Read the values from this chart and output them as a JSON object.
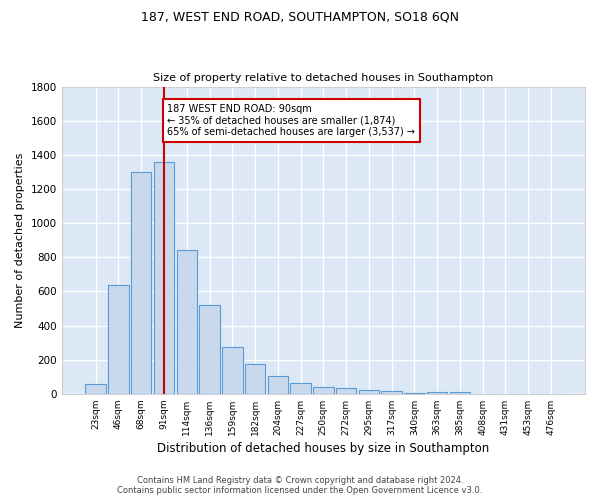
{
  "title": "187, WEST END ROAD, SOUTHAMPTON, SO18 6QN",
  "subtitle": "Size of property relative to detached houses in Southampton",
  "xlabel": "Distribution of detached houses by size in Southampton",
  "ylabel": "Number of detached properties",
  "footer_line1": "Contains HM Land Registry data © Crown copyright and database right 2024.",
  "footer_line2": "Contains public sector information licensed under the Open Government Licence v3.0.",
  "bar_labels": [
    "23sqm",
    "46sqm",
    "68sqm",
    "91sqm",
    "114sqm",
    "136sqm",
    "159sqm",
    "182sqm",
    "204sqm",
    "227sqm",
    "250sqm",
    "272sqm",
    "295sqm",
    "317sqm",
    "340sqm",
    "363sqm",
    "385sqm",
    "408sqm",
    "431sqm",
    "453sqm",
    "476sqm"
  ],
  "bar_values": [
    55,
    640,
    1300,
    1360,
    840,
    520,
    275,
    175,
    105,
    65,
    40,
    35,
    25,
    15,
    5,
    10,
    10,
    0,
    0,
    0,
    0
  ],
  "bar_color": "#c8d9ed",
  "bar_edge_color": "#5b9bd5",
  "background_color": "#dce8f5",
  "grid_color": "#ffffff",
  "annotation_box_text_line1": "187 WEST END ROAD: 90sqm",
  "annotation_box_text_line2": "← 35% of detached houses are smaller (1,874)",
  "annotation_box_text_line3": "65% of semi-detached houses are larger (3,537) →",
  "annotation_box_edge_color": "#cc0000",
  "vline_x_index": 3,
  "vline_color": "#cc0000",
  "ylim": [
    0,
    1800
  ],
  "yticks": [
    0,
    200,
    400,
    600,
    800,
    1000,
    1200,
    1400,
    1600,
    1800
  ],
  "fig_width": 6.0,
  "fig_height": 5.0,
  "dpi": 100
}
